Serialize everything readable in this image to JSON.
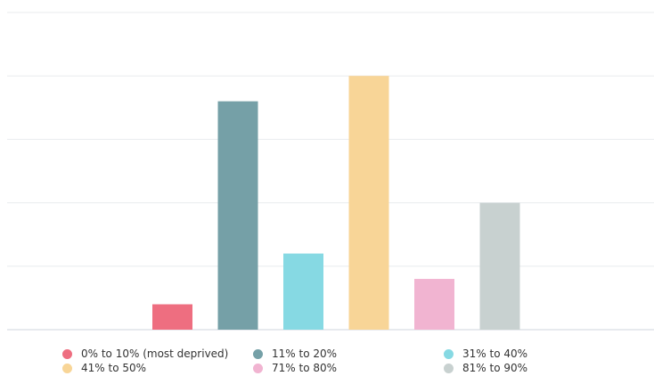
{
  "chart_data": {
    "type": "bar",
    "categories": [
      "0% to 10% (most deprived)",
      "11% to 20%",
      "31% to 40%",
      "41% to 50%",
      "71% to 80%",
      "81% to 90%"
    ],
    "values": [
      2,
      18,
      6,
      20,
      4,
      10
    ],
    "ylim": [
      0,
      25
    ],
    "grid": true,
    "colors": [
      "#ee6e80",
      "#75a0a7",
      "#86d9e3",
      "#f8d597",
      "#f1b4d1",
      "#c8d1d0"
    ],
    "legend_position": "bottom",
    "title": "",
    "xlabel": "",
    "ylabel": ""
  }
}
